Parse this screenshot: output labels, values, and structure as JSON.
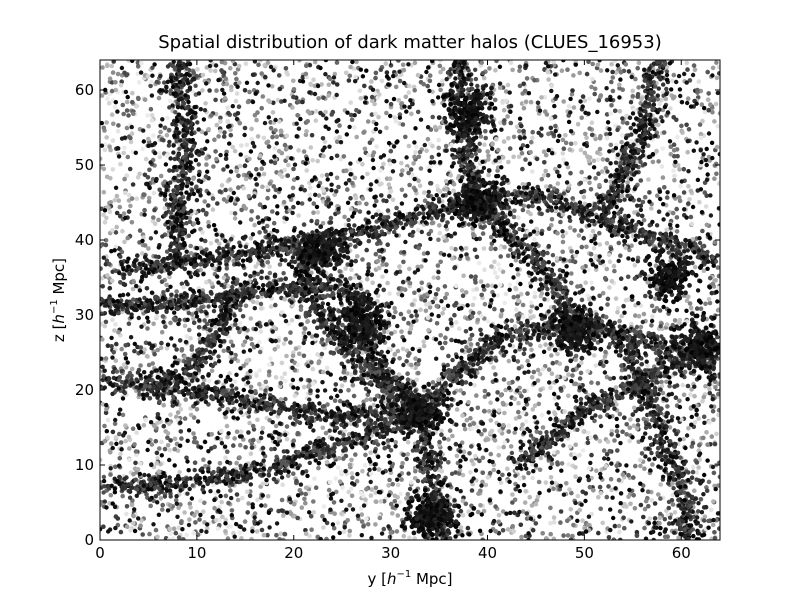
{
  "chart_data": {
    "type": "scatter",
    "title": "Spatial distribution of dark matter halos (CLUES_16953)",
    "xlabel": {
      "prefix": "y [",
      "unit_base": "h",
      "unit_exp": "−1",
      "suffix": " Mpc]"
    },
    "ylabel": {
      "prefix": "z [",
      "unit_base": "h",
      "unit_exp": "−1",
      "suffix": " Mpc]"
    },
    "xlim": [
      0,
      64
    ],
    "ylim": [
      0,
      64
    ],
    "xticks": [
      "0",
      "10",
      "20",
      "30",
      "40",
      "50",
      "60"
    ],
    "yticks": [
      "0",
      "10",
      "20",
      "30",
      "40",
      "50",
      "60"
    ],
    "grid": false,
    "marker_color_scale": "grayscale",
    "filaments": [
      {
        "points": [
          [
            0,
            7
          ],
          [
            8,
            7.5
          ],
          [
            16,
            9
          ],
          [
            22,
            11.5
          ],
          [
            28,
            14
          ],
          [
            33,
            17
          ]
        ]
      },
      {
        "points": [
          [
            0,
            21
          ],
          [
            6,
            20.5
          ],
          [
            12,
            19.5
          ],
          [
            19,
            17.5
          ],
          [
            26,
            16.5
          ],
          [
            33,
            17
          ]
        ]
      },
      {
        "points": [
          [
            33,
            17
          ],
          [
            36,
            21
          ],
          [
            39,
            24.5
          ],
          [
            41,
            27
          ],
          [
            45,
            28
          ],
          [
            49,
            28.5
          ],
          [
            54,
            27.5
          ],
          [
            58,
            26
          ],
          [
            62,
            24
          ],
          [
            64,
            22
          ]
        ]
      },
      {
        "points": [
          [
            33,
            17
          ],
          [
            33.5,
            12
          ],
          [
            34.5,
            6
          ],
          [
            35.5,
            0
          ]
        ]
      },
      {
        "points": [
          [
            33,
            17
          ],
          [
            30,
            21
          ],
          [
            28,
            25
          ],
          [
            27.5,
            29
          ]
        ]
      },
      {
        "points": [
          [
            37,
            64
          ],
          [
            37.5,
            57
          ],
          [
            38,
            50
          ],
          [
            39,
            45
          ],
          [
            42,
            41
          ],
          [
            46,
            36
          ],
          [
            49,
            30
          ],
          [
            51,
            28
          ]
        ]
      },
      {
        "points": [
          [
            39,
            45
          ],
          [
            43,
            46
          ],
          [
            47,
            45.5
          ],
          [
            52,
            43
          ],
          [
            57,
            40.5
          ],
          [
            62,
            38
          ],
          [
            64,
            37
          ]
        ]
      },
      {
        "points": [
          [
            39,
            45
          ],
          [
            35,
            44
          ],
          [
            30,
            42
          ],
          [
            25,
            40.5
          ],
          [
            20,
            39.5
          ],
          [
            14,
            38
          ],
          [
            8,
            37
          ],
          [
            2,
            36
          ]
        ]
      },
      {
        "points": [
          [
            0,
            31.5
          ],
          [
            5,
            31
          ],
          [
            10,
            32
          ],
          [
            14,
            33
          ],
          [
            19,
            33.5
          ],
          [
            23,
            34
          ],
          [
            26,
            33
          ],
          [
            28,
            31
          ]
        ]
      },
      {
        "points": [
          [
            20,
            39.5
          ],
          [
            21,
            35
          ],
          [
            23,
            30
          ],
          [
            26,
            25
          ],
          [
            29,
            21
          ],
          [
            33,
            17
          ]
        ]
      },
      {
        "points": [
          [
            14,
            33
          ],
          [
            12,
            27
          ],
          [
            9,
            22.5
          ],
          [
            6,
            20.5
          ]
        ]
      },
      {
        "points": [
          [
            8,
            64
          ],
          [
            8.5,
            57
          ],
          [
            9,
            51
          ],
          [
            8,
            46
          ],
          [
            8,
            37
          ]
        ]
      },
      {
        "points": [
          [
            52,
            43
          ],
          [
            54,
            49
          ],
          [
            56,
            54
          ],
          [
            57,
            60
          ],
          [
            57.5,
            64
          ]
        ]
      },
      {
        "points": [
          [
            54,
            27.5
          ],
          [
            56,
            21
          ],
          [
            58,
            14
          ],
          [
            60,
            7
          ],
          [
            61,
            0
          ]
        ]
      },
      {
        "points": [
          [
            43,
            10
          ],
          [
            47,
            14
          ],
          [
            51,
            18
          ],
          [
            56,
            21
          ],
          [
            60,
            24
          ]
        ]
      }
    ],
    "clusters": [
      {
        "x": 38,
        "y": 57
      },
      {
        "x": 39,
        "y": 45
      },
      {
        "x": 33,
        "y": 17
      },
      {
        "x": 34,
        "y": 3
      },
      {
        "x": 59,
        "y": 35
      },
      {
        "x": 23,
        "y": 38.5
      },
      {
        "x": 27,
        "y": 29
      },
      {
        "x": 49,
        "y": 28
      },
      {
        "x": 62,
        "y": 26
      }
    ],
    "voids": [
      {
        "x": 44,
        "y": 13
      },
      {
        "x": 33,
        "y": 54
      },
      {
        "x": 55,
        "y": 53
      },
      {
        "x": 44,
        "y": 33
      },
      {
        "x": 16,
        "y": 24
      },
      {
        "x": 8,
        "y": 4
      },
      {
        "x": 28,
        "y": 6
      },
      {
        "x": 5,
        "y": 56
      }
    ]
  }
}
